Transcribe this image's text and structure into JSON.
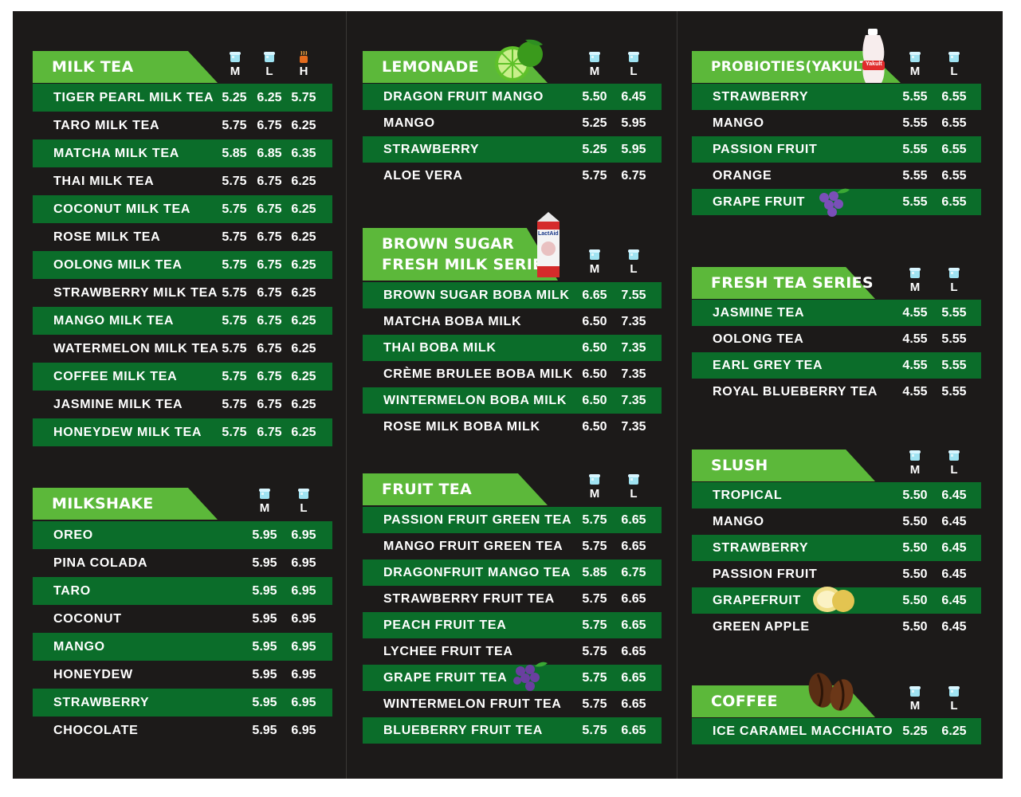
{
  "milk_tea": {
    "title": "MILK TEA",
    "sizes": [
      "M",
      "L",
      "H"
    ],
    "items": [
      {
        "name": "TIGER PEARL MILK TEA",
        "m": "5.25",
        "l": "6.25",
        "h": "5.75"
      },
      {
        "name": "TARO MILK TEA",
        "m": "5.75",
        "l": "6.75",
        "h": "6.25"
      },
      {
        "name": "MATCHA MILK TEA",
        "m": "5.85",
        "l": "6.85",
        "h": "6.35"
      },
      {
        "name": "THAI MILK TEA",
        "m": "5.75",
        "l": "6.75",
        "h": "6.25"
      },
      {
        "name": "COCONUT MILK TEA",
        "m": "5.75",
        "l": "6.75",
        "h": "6.25"
      },
      {
        "name": "ROSE MILK TEA",
        "m": "5.75",
        "l": "6.75",
        "h": "6.25"
      },
      {
        "name": "OOLONG MILK TEA",
        "m": "5.75",
        "l": "6.75",
        "h": "6.25"
      },
      {
        "name": "STRAWBERRY MILK TEA",
        "m": "5.75",
        "l": "6.75",
        "h": "6.25"
      },
      {
        "name": "MANGO MILK TEA",
        "m": "5.75",
        "l": "6.75",
        "h": "6.25"
      },
      {
        "name": "WATERMELON MILK TEA",
        "m": "5.75",
        "l": "6.75",
        "h": "6.25"
      },
      {
        "name": "COFFEE MILK TEA",
        "m": "5.75",
        "l": "6.75",
        "h": "6.25"
      },
      {
        "name": "JASMINE MILK TEA",
        "m": "5.75",
        "l": "6.75",
        "h": "6.25"
      },
      {
        "name": "HONEYDEW MILK TEA",
        "m": "5.75",
        "l": "6.75",
        "h": "6.25"
      }
    ]
  },
  "milkshake": {
    "title": "MILKSHAKE",
    "sizes": [
      "M",
      "L"
    ],
    "items": [
      {
        "name": "OREO",
        "m": "5.95",
        "l": "6.95"
      },
      {
        "name": "PINA COLADA",
        "m": "5.95",
        "l": "6.95"
      },
      {
        "name": "TARO",
        "m": "5.95",
        "l": "6.95"
      },
      {
        "name": "COCONUT",
        "m": "5.95",
        "l": "6.95"
      },
      {
        "name": "MANGO",
        "m": "5.95",
        "l": "6.95"
      },
      {
        "name": "HONEYDEW",
        "m": "5.95",
        "l": "6.95"
      },
      {
        "name": "STRAWBERRY",
        "m": "5.95",
        "l": "6.95"
      },
      {
        "name": "CHOCOLATE",
        "m": "5.95",
        "l": "6.95"
      }
    ]
  },
  "lemonade": {
    "title": "LEMONADE",
    "sizes": [
      "M",
      "L"
    ],
    "items": [
      {
        "name": "DRAGON FRUIT MANGO",
        "m": "5.50",
        "l": "6.45"
      },
      {
        "name": "MANGO",
        "m": "5.25",
        "l": "5.95"
      },
      {
        "name": "STRAWBERRY",
        "m": "5.25",
        "l": "5.95"
      },
      {
        "name": "ALOE VERA",
        "m": "5.75",
        "l": "6.75"
      }
    ]
  },
  "brown_sugar": {
    "title_line1": "BROWN SUGAR",
    "title_line2": "FRESH MILK SERIES",
    "sizes": [
      "M",
      "L"
    ],
    "items": [
      {
        "name": "BROWN SUGAR BOBA MILK",
        "m": "6.65",
        "l": "7.55"
      },
      {
        "name": "MATCHA BOBA MILK",
        "m": "6.50",
        "l": "7.35"
      },
      {
        "name": "THAI BOBA MILK",
        "m": "6.50",
        "l": "7.35"
      },
      {
        "name": "CRÈME BRULEE BOBA MILK",
        "m": "6.50",
        "l": "7.35"
      },
      {
        "name": "WINTERMELON BOBA MILK",
        "m": "6.50",
        "l": "7.35"
      },
      {
        "name": "ROSE MILK BOBA MILK",
        "m": "6.50",
        "l": "7.35"
      }
    ],
    "carton_label": "LactAid"
  },
  "fruit_tea": {
    "title": "FRUIT TEA",
    "sizes": [
      "M",
      "L"
    ],
    "items": [
      {
        "name": "PASSION FRUIT GREEN TEA",
        "m": "5.75",
        "l": "6.65"
      },
      {
        "name": "MANGO FRUIT GREEN TEA",
        "m": "5.75",
        "l": "6.65"
      },
      {
        "name": "DRAGONFRUIT MANGO TEA",
        "m": "5.85",
        "l": "6.75"
      },
      {
        "name": "STRAWBERRY FRUIT TEA",
        "m": "5.75",
        "l": "6.65"
      },
      {
        "name": "PEACH FRUIT TEA",
        "m": "5.75",
        "l": "6.65"
      },
      {
        "name": "LYCHEE FRUIT TEA",
        "m": "5.75",
        "l": "6.65"
      },
      {
        "name": "GRAPE FRUIT TEA",
        "m": "5.75",
        "l": "6.65"
      },
      {
        "name": "WINTERMELON FRUIT TEA",
        "m": "5.75",
        "l": "6.65"
      },
      {
        "name": "BLUEBERRY FRUIT TEA",
        "m": "5.75",
        "l": "6.65"
      }
    ]
  },
  "probiotics": {
    "title": "PROBIOTIES(YAKULT)",
    "sizes": [
      "M",
      "L"
    ],
    "items": [
      {
        "name": "STRAWBERRY",
        "m": "5.55",
        "l": "6.55"
      },
      {
        "name": "MANGO",
        "m": "5.55",
        "l": "6.55"
      },
      {
        "name": "PASSION FRUIT",
        "m": "5.55",
        "l": "6.55"
      },
      {
        "name": "ORANGE",
        "m": "5.55",
        "l": "6.55"
      },
      {
        "name": "GRAPE FRUIT",
        "m": "5.55",
        "l": "6.55"
      }
    ],
    "bottle_label": "Yakult"
  },
  "fresh_tea": {
    "title": "FRESH TEA SERIES",
    "sizes": [
      "M",
      "L"
    ],
    "items": [
      {
        "name": "JASMINE TEA",
        "m": "4.55",
        "l": "5.55"
      },
      {
        "name": "OOLONG TEA",
        "m": "4.55",
        "l": "5.55"
      },
      {
        "name": "EARL GREY TEA",
        "m": "4.55",
        "l": "5.55"
      },
      {
        "name": "ROYAL BLUEBERRY TEA",
        "m": "4.55",
        "l": "5.55"
      }
    ]
  },
  "slush": {
    "title": "SLUSH",
    "sizes": [
      "M",
      "L"
    ],
    "items": [
      {
        "name": "TROPICAL",
        "m": "5.50",
        "l": "6.45"
      },
      {
        "name": "MANGO",
        "m": "5.50",
        "l": "6.45"
      },
      {
        "name": "STRAWBERRY",
        "m": "5.50",
        "l": "6.45"
      },
      {
        "name": "PASSION FRUIT",
        "m": "5.50",
        "l": "6.45"
      },
      {
        "name": "GRAPEFRUIT",
        "m": "5.50",
        "l": "6.45"
      },
      {
        "name": "GREEN APPLE",
        "m": "5.50",
        "l": "6.45"
      }
    ]
  },
  "coffee": {
    "title": "COFFEE",
    "sizes": [
      "M",
      "L"
    ],
    "items": [
      {
        "name": "ICE CARAMEL MACCHIATO",
        "m": "5.25",
        "l": "6.25"
      }
    ]
  },
  "colors": {
    "board": "#1c1a19",
    "stripe": "#0b6d2a",
    "header_green": "#5cb83a",
    "text": "#ffffff"
  }
}
